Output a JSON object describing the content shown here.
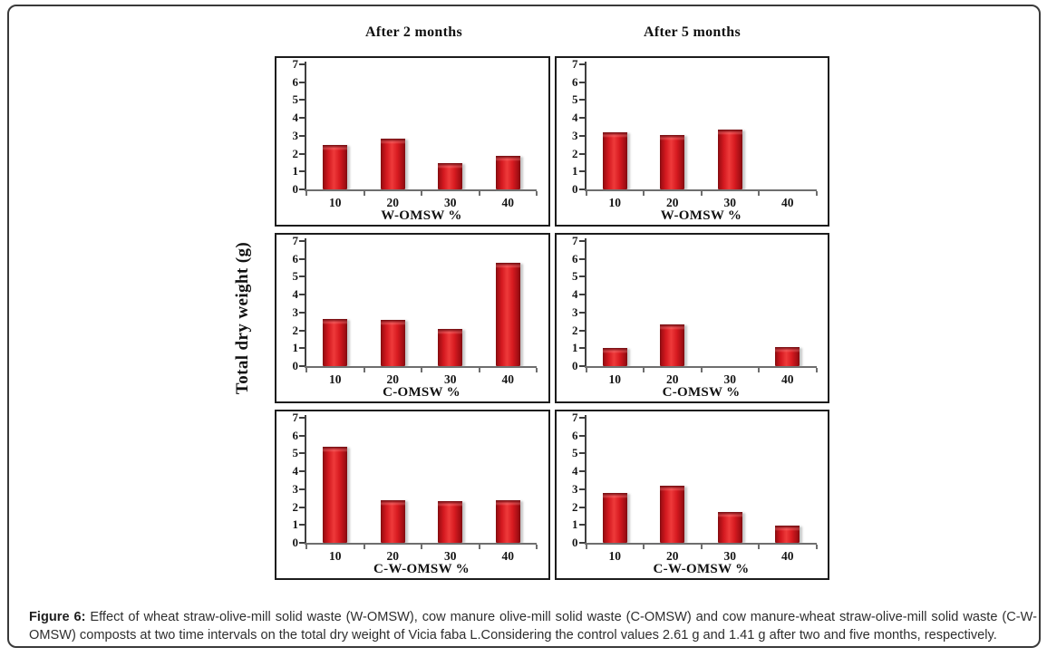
{
  "figure": {
    "column_headers": [
      "After 2 months",
      "After 5 months"
    ],
    "y_axis_label": "Total dry weight (g)",
    "caption_label": "Figure 6:",
    "caption_text": " Effect of wheat straw-olive-mill solid waste (W-OMSW), cow manure olive-mill solid waste (C-OMSW) and cow manure-wheat straw-olive-mill solid waste (C-W-OMSW) composts at two time intervals on the total dry weight of Vicia faba L.Considering the control values 2.61 g and 1.41 g after two and five months, respectively."
  },
  "colors": {
    "bar_red_center": "#ee3a3a",
    "bar_red_main": "#d41920",
    "bar_red_edge": "#7e0c10",
    "panel_border": "#1c1c1c",
    "y_axis_line": "#3f3f3f",
    "x_axis_line": "#6e6e6e",
    "text": "#111111"
  },
  "chart_data": [
    {
      "type": "bar",
      "id": "w-omsw-after-2-months",
      "column": "After 2 months",
      "categories": [
        "10",
        "20",
        "30",
        "40"
      ],
      "values": [
        2.5,
        2.85,
        1.45,
        1.9
      ],
      "xlabel": "W-OMSW %",
      "ylabel": "",
      "ylim": [
        0,
        7
      ],
      "yticks": [
        0,
        1,
        2,
        3,
        4,
        5,
        6,
        7
      ],
      "grid": false,
      "legend": "none"
    },
    {
      "type": "bar",
      "id": "w-omsw-after-5-months",
      "column": "After 5 months",
      "categories": [
        "10",
        "20",
        "30",
        "40"
      ],
      "values": [
        3.2,
        3.05,
        3.35,
        0
      ],
      "xlabel": "W-OMSW %",
      "ylabel": "",
      "ylim": [
        0,
        7
      ],
      "yticks": [
        0,
        1,
        2,
        3,
        4,
        5,
        6,
        7
      ],
      "grid": false,
      "legend": "none"
    },
    {
      "type": "bar",
      "id": "c-omsw-after-2-months",
      "column": "After 2 months",
      "categories": [
        "10",
        "20",
        "30",
        "40"
      ],
      "values": [
        2.65,
        2.6,
        2.1,
        5.8
      ],
      "xlabel": "C-OMSW %",
      "ylabel": "",
      "ylim": [
        0,
        7
      ],
      "yticks": [
        0,
        1,
        2,
        3,
        4,
        5,
        6,
        7
      ],
      "grid": false,
      "legend": "none"
    },
    {
      "type": "bar",
      "id": "c-omsw-after-5-months",
      "column": "After 5 months",
      "categories": [
        "10",
        "20",
        "30",
        "40"
      ],
      "values": [
        1.0,
        2.35,
        0,
        1.05
      ],
      "xlabel": "C-OMSW %",
      "ylabel": "",
      "ylim": [
        0,
        7
      ],
      "yticks": [
        0,
        1,
        2,
        3,
        4,
        5,
        6,
        7
      ],
      "grid": false,
      "legend": "none"
    },
    {
      "type": "bar",
      "id": "c-w-omsw-after-2-months",
      "column": "After 2 months",
      "categories": [
        "10",
        "20",
        "30",
        "40"
      ],
      "values": [
        5.4,
        2.4,
        2.35,
        2.4
      ],
      "xlabel": "C-W-OMSW %",
      "ylabel": "",
      "ylim": [
        0,
        7
      ],
      "yticks": [
        0,
        1,
        2,
        3,
        4,
        5,
        6,
        7
      ],
      "grid": false,
      "legend": "none"
    },
    {
      "type": "bar",
      "id": "c-w-omsw-after-5-months",
      "column": "After 5 months",
      "categories": [
        "10",
        "20",
        "30",
        "40"
      ],
      "values": [
        2.8,
        3.2,
        1.7,
        0.95
      ],
      "xlabel": "C-W-OMSW %",
      "ylabel": "",
      "ylim": [
        0,
        7
      ],
      "yticks": [
        0,
        1,
        2,
        3,
        4,
        5,
        6,
        7
      ],
      "grid": false,
      "legend": "none"
    }
  ]
}
